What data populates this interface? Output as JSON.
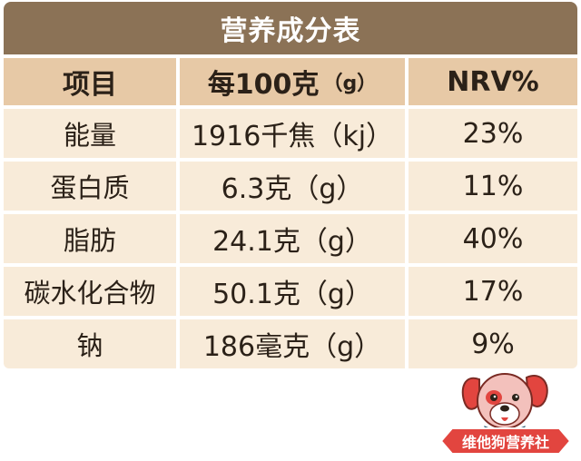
{
  "table": {
    "title": "营养成分表",
    "header": {
      "item": "项目",
      "per100": "每100克",
      "per100_unit": "（g）",
      "nrv": "NRV%"
    },
    "rows": [
      {
        "name": "能量",
        "amount": "1916千焦（kj）",
        "nrv": "23%"
      },
      {
        "name": "蛋白质",
        "amount": "6.3克（g）",
        "nrv": "11%"
      },
      {
        "name": "脂肪",
        "amount": "24.1克（g）",
        "nrv": "40%"
      },
      {
        "name": "碳水化合物",
        "amount": "50.1克（g）",
        "nrv": "17%"
      },
      {
        "name": "钠",
        "amount": "186毫克（g）",
        "nrv": "9%"
      }
    ]
  },
  "logo": {
    "text": "维他狗营养社",
    "icon": "dog-mascot-icon"
  },
  "colors": {
    "title_bg": "#8b7256",
    "header_bg": "#e7c9a6",
    "row_bg": "#f8ebd9",
    "text": "#2b2118",
    "logo_ribbon": "#e2453f"
  }
}
